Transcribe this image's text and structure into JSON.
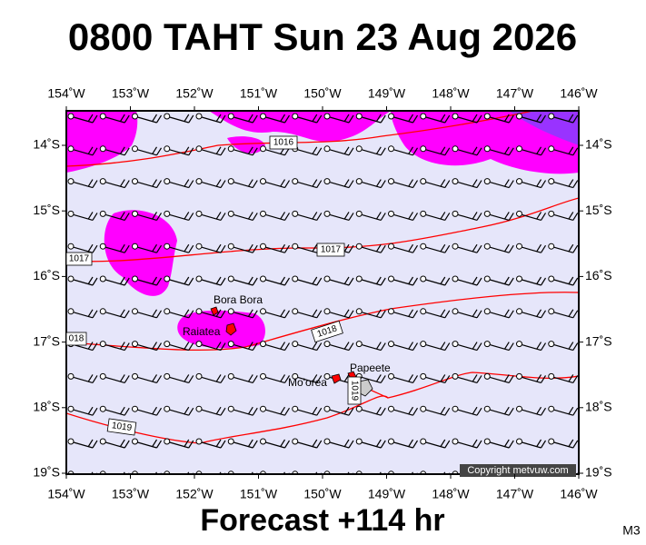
{
  "header": {
    "title": "0800 TAHT Sun 23 Aug 2026"
  },
  "map": {
    "lon_labels": [
      "154˚W",
      "153˚W",
      "152˚W",
      "151˚W",
      "150˚W",
      "149˚W",
      "148˚W",
      "147˚W",
      "146˚W"
    ],
    "lat_labels": [
      "14˚S",
      "15˚S",
      "16˚S",
      "17˚S",
      "18˚S",
      "19˚S"
    ],
    "isobar_labels": [
      "1016",
      "1017",
      "1017",
      "018",
      "1018",
      "1019",
      "1019"
    ],
    "places": [
      "Bora Bora",
      "Raiatea",
      "Mo'orea",
      "Papeete"
    ],
    "copyright": "Copyright metvuw.com"
  },
  "footer": {
    "forecast": "Forecast +114 hr",
    "model": "M3"
  }
}
